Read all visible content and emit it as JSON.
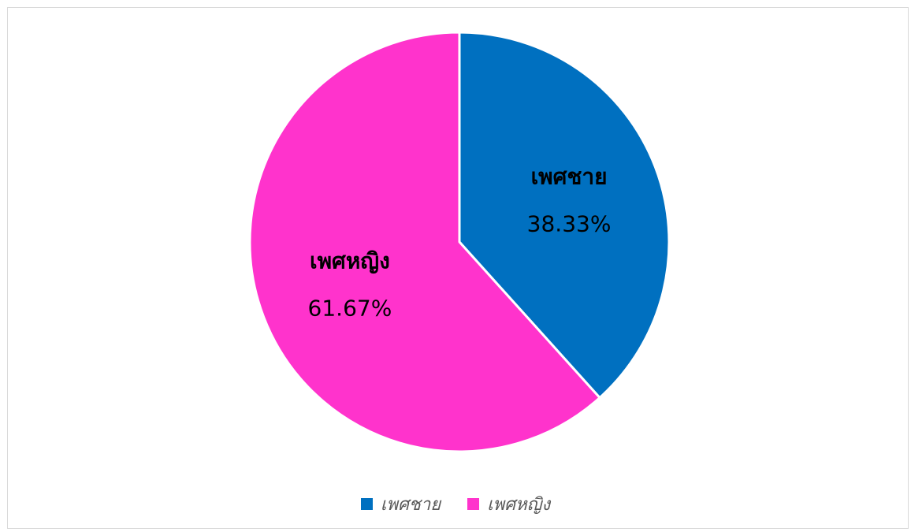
{
  "chart_data": {
    "type": "pie",
    "title": "",
    "legend_position": "bottom",
    "slices": [
      {
        "label": "เพศชาย",
        "value": 38.33,
        "display": "38.33%",
        "color": "#0070C0"
      },
      {
        "label": "เพศหญิง",
        "value": 61.67,
        "display": "61.67%",
        "color": "#FF33CC"
      }
    ]
  }
}
